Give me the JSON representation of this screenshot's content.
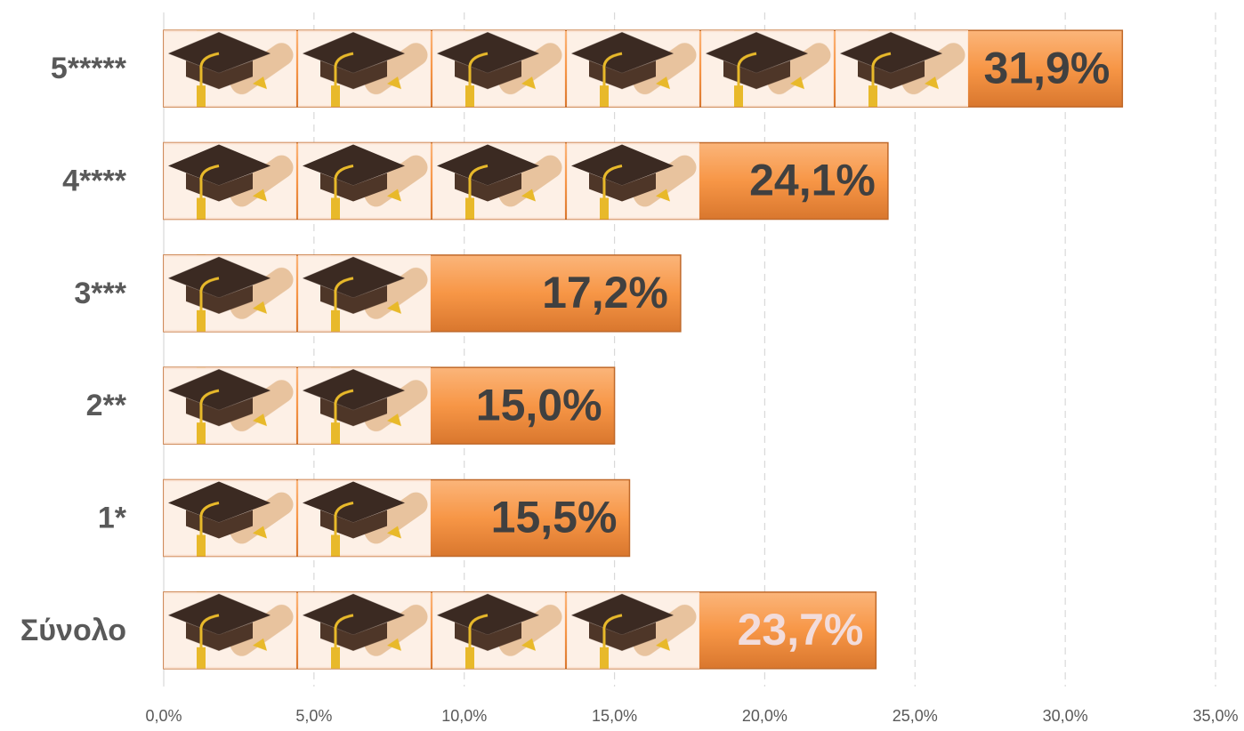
{
  "chart_data": {
    "type": "bar",
    "orientation": "horizontal",
    "categories": [
      "5*****",
      "4****",
      "3***",
      "2**",
      "1*",
      "Σύνολο"
    ],
    "values": [
      31.9,
      24.1,
      17.2,
      15.0,
      15.5,
      23.7
    ],
    "value_labels": [
      "31,9%",
      "24,1%",
      "17,2%",
      "15,0%",
      "15,5%",
      "23,7%"
    ],
    "color": "#f79646",
    "xlim": [
      0,
      35
    ],
    "xticks": [
      {
        "value": 0,
        "label": "0,0%"
      },
      {
        "value": 5,
        "label": "5,0%"
      },
      {
        "value": 10,
        "label": "10,0%"
      },
      {
        "value": 15,
        "label": "15,0%"
      },
      {
        "value": 20,
        "label": "20,0%"
      },
      {
        "value": 25,
        "label": "25,0%"
      },
      {
        "value": 30,
        "label": "30,0%"
      },
      {
        "value": 35,
        "label": "35,0%"
      }
    ],
    "grid": true
  }
}
